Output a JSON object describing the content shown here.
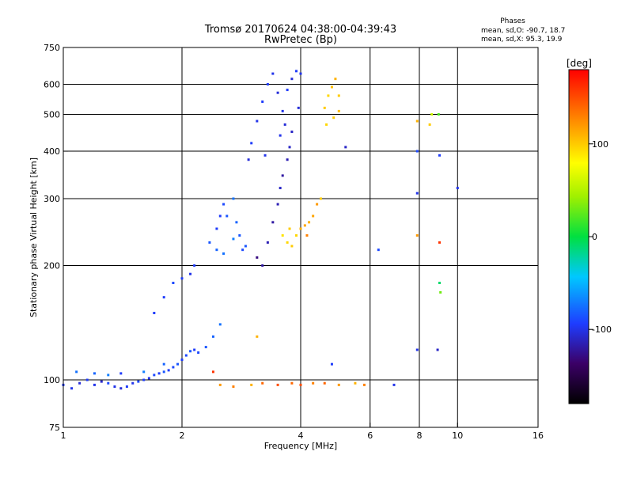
{
  "chart_data": {
    "type": "scatter",
    "title": "Tromsø 20170624 04:38:00-04:39:43",
    "subtitle": "RwPretec (Bp)",
    "xlabel": "Frequency [MHz]",
    "ylabel": "Stationary phase Virtual Height [km]",
    "x_scale": "log",
    "y_scale": "log",
    "xlim": [
      1,
      16
    ],
    "ylim": [
      75,
      750
    ],
    "x_ticks": [
      1,
      2,
      4,
      6,
      8,
      10,
      16
    ],
    "x_tick_labels": [
      "1",
      "2",
      "4",
      "6",
      "8",
      "10",
      "16"
    ],
    "x_gridlines": [
      2,
      4,
      6,
      8,
      10
    ],
    "y_ticks": [
      75,
      100,
      200,
      300,
      400,
      500,
      600,
      750
    ],
    "y_tick_labels": [
      "75",
      "100",
      "200",
      "300",
      "400",
      "500",
      "600",
      "750"
    ],
    "y_gridlines": [
      100,
      200,
      300,
      400,
      500,
      600
    ],
    "grid": true,
    "colorbar": {
      "label": "[deg]",
      "range": [
        -180,
        180
      ],
      "ticks": [
        100,
        0,
        -100
      ],
      "tick_labels": [
        "100",
        "0",
        "-100"
      ]
    },
    "legend_title": "Phases",
    "legend_lines": [
      "mean, sd,O: -90.7, 18.7",
      "mean, sd,X:  95.3, 19.9"
    ],
    "series": [
      {
        "points": [
          [
            1.0,
            97,
            -95
          ],
          [
            1.05,
            95,
            -100
          ],
          [
            1.1,
            98,
            -105
          ],
          [
            1.15,
            100,
            -95
          ],
          [
            1.2,
            97,
            -100
          ],
          [
            1.25,
            99,
            -110
          ],
          [
            1.3,
            98,
            -90
          ],
          [
            1.35,
            96,
            -100
          ],
          [
            1.4,
            95,
            -105
          ],
          [
            1.45,
            96,
            -95
          ],
          [
            1.5,
            98,
            -100
          ],
          [
            1.55,
            99,
            -90
          ],
          [
            1.6,
            100,
            -95
          ],
          [
            1.65,
            101,
            -100
          ],
          [
            1.7,
            103,
            -90
          ],
          [
            1.75,
            104,
            -95
          ],
          [
            1.8,
            105,
            -85
          ],
          [
            1.85,
            106,
            -95
          ],
          [
            1.9,
            108,
            -90
          ],
          [
            1.95,
            110,
            -85
          ],
          [
            2.0,
            113,
            -95
          ],
          [
            2.05,
            116,
            -90
          ],
          [
            2.1,
            119,
            -85
          ],
          [
            2.15,
            120,
            -95
          ],
          [
            2.2,
            118,
            -90
          ],
          [
            2.3,
            122,
            -85
          ],
          [
            2.4,
            130,
            -80
          ],
          [
            2.5,
            140,
            -75
          ],
          [
            1.08,
            105,
            -75
          ],
          [
            1.2,
            104,
            -80
          ],
          [
            1.3,
            103,
            -70
          ],
          [
            1.4,
            104,
            -95
          ],
          [
            1.6,
            105,
            -70
          ],
          [
            1.8,
            110,
            -80
          ],
          [
            1.7,
            150,
            -95
          ],
          [
            1.8,
            165,
            -95
          ],
          [
            1.9,
            180,
            -90
          ],
          [
            2.0,
            185,
            -95
          ],
          [
            2.1,
            190,
            -100
          ],
          [
            2.15,
            200,
            -95
          ],
          [
            2.35,
            230,
            -85
          ],
          [
            2.45,
            250,
            -95
          ],
          [
            2.5,
            270,
            -95
          ],
          [
            2.55,
            290,
            -90
          ],
          [
            2.6,
            270,
            -85
          ],
          [
            2.45,
            220,
            -80
          ],
          [
            2.55,
            215,
            -75
          ],
          [
            2.7,
            235,
            -70
          ],
          [
            2.75,
            260,
            -80
          ],
          [
            2.8,
            240,
            -85
          ],
          [
            2.85,
            220,
            -90
          ],
          [
            2.9,
            225,
            -85
          ],
          [
            2.7,
            300,
            -75
          ],
          [
            2.95,
            380,
            -105
          ],
          [
            3.0,
            420,
            -95
          ],
          [
            3.1,
            480,
            -100
          ],
          [
            3.2,
            540,
            -95
          ],
          [
            3.3,
            600,
            -95
          ],
          [
            3.4,
            640,
            -100
          ],
          [
            3.5,
            570,
            -105
          ],
          [
            3.6,
            510,
            -100
          ],
          [
            3.7,
            580,
            -95
          ],
          [
            3.8,
            620,
            -105
          ],
          [
            3.9,
            650,
            -95
          ],
          [
            4.0,
            640,
            -100
          ],
          [
            3.55,
            440,
            -100
          ],
          [
            3.65,
            470,
            -105
          ],
          [
            3.25,
            390,
            -100
          ],
          [
            3.1,
            210,
            -130
          ],
          [
            3.2,
            200,
            -120
          ],
          [
            3.3,
            230,
            -115
          ],
          [
            3.4,
            260,
            -120
          ],
          [
            3.5,
            290,
            -115
          ],
          [
            3.55,
            320,
            -110
          ],
          [
            3.6,
            345,
            -120
          ],
          [
            3.7,
            380,
            -115
          ],
          [
            3.75,
            410,
            -110
          ],
          [
            3.8,
            450,
            -110
          ],
          [
            3.95,
            520,
            -105
          ]
        ]
      },
      {
        "points": [
          [
            3.6,
            240,
            90
          ],
          [
            3.7,
            230,
            95
          ],
          [
            3.8,
            225,
            100
          ],
          [
            3.9,
            240,
            95
          ],
          [
            4.0,
            250,
            110
          ],
          [
            4.1,
            255,
            115
          ],
          [
            4.2,
            260,
            110
          ],
          [
            4.3,
            270,
            115
          ],
          [
            4.4,
            290,
            120
          ],
          [
            4.5,
            300,
            100
          ],
          [
            3.75,
            250,
            100
          ],
          [
            4.15,
            240,
            130
          ],
          [
            4.6,
            520,
            100
          ],
          [
            4.7,
            560,
            95
          ],
          [
            4.8,
            590,
            105
          ],
          [
            4.9,
            620,
            110
          ],
          [
            5.0,
            560,
            100
          ],
          [
            4.65,
            470,
            95
          ],
          [
            4.85,
            490,
            100
          ],
          [
            5.0,
            510,
            105
          ],
          [
            2.5,
            97,
            120
          ],
          [
            2.7,
            96,
            130
          ],
          [
            3.0,
            97,
            110
          ],
          [
            3.2,
            98,
            140
          ],
          [
            3.5,
            97,
            150
          ],
          [
            3.8,
            98,
            140
          ],
          [
            4.0,
            97,
            150
          ],
          [
            4.3,
            98,
            130
          ],
          [
            4.6,
            98,
            140
          ],
          [
            5.0,
            97,
            120
          ],
          [
            5.5,
            98,
            110
          ],
          [
            5.8,
            97,
            130
          ],
          [
            3.1,
            130,
            110
          ],
          [
            2.4,
            105,
            160
          ],
          [
            7.9,
            240,
            120
          ],
          [
            7.9,
            480,
            110
          ],
          [
            9.0,
            230,
            160
          ],
          [
            8.5,
            470,
            100
          ]
        ]
      },
      {
        "points": [
          [
            7.9,
            400,
            -90
          ],
          [
            7.9,
            310,
            -100
          ],
          [
            7.9,
            120,
            -100
          ],
          [
            8.9,
            120,
            -110
          ],
          [
            9.0,
            390,
            -95
          ],
          [
            10.0,
            320,
            -100
          ],
          [
            9.0,
            180,
            -10
          ],
          [
            9.05,
            170,
            30
          ],
          [
            8.6,
            500,
            60
          ],
          [
            8.95,
            500,
            20
          ],
          [
            6.3,
            220,
            -90
          ],
          [
            5.2,
            410,
            -110
          ],
          [
            4.8,
            110,
            -95
          ],
          [
            6.9,
            97,
            -100
          ]
        ]
      }
    ]
  }
}
